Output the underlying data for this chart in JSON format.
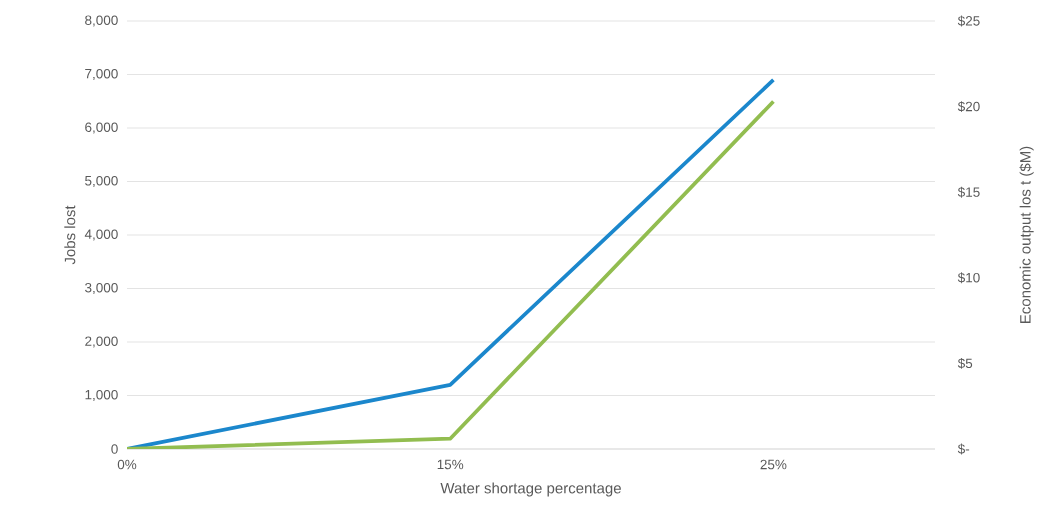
{
  "chart_data": {
    "type": "line",
    "xlabel": "Water shortage percentage",
    "ylabel": "Jobs lost",
    "y2label": "Economic output los t ($M)",
    "categories": [
      "0%",
      "15%",
      "25%"
    ],
    "series": [
      {
        "color": "#1b87cc",
        "values": [
          0,
          1200,
          6900
        ]
      },
      {
        "color": "#92bd50",
        "values": [
          0,
          0.6,
          20.3
        ],
        "axis": "y2"
      }
    ],
    "ylim": [
      0,
      8000
    ],
    "yticks": [
      {
        "value": 0,
        "label": "0"
      },
      {
        "value": 1000,
        "label": "1,000"
      },
      {
        "value": 2000,
        "label": "2,000"
      },
      {
        "value": 3000,
        "label": "3,000"
      },
      {
        "value": 4000,
        "label": "4,000"
      },
      {
        "value": 5000,
        "label": "5,000"
      },
      {
        "value": 6000,
        "label": "6,000"
      },
      {
        "value": 7000,
        "label": "7,000"
      },
      {
        "value": 8000,
        "label": "8,000"
      }
    ],
    "y2lim": [
      0,
      25
    ],
    "y2ticks": [
      {
        "value": 0,
        "label": "$-"
      },
      {
        "value": 5,
        "label": "$5"
      },
      {
        "value": 10,
        "label": "$10"
      },
      {
        "value": 15,
        "label": "$15"
      },
      {
        "value": 20,
        "label": "$20"
      },
      {
        "value": 25,
        "label": "$25"
      }
    ],
    "grid": "y",
    "marker": "none",
    "line_style": "solid"
  }
}
